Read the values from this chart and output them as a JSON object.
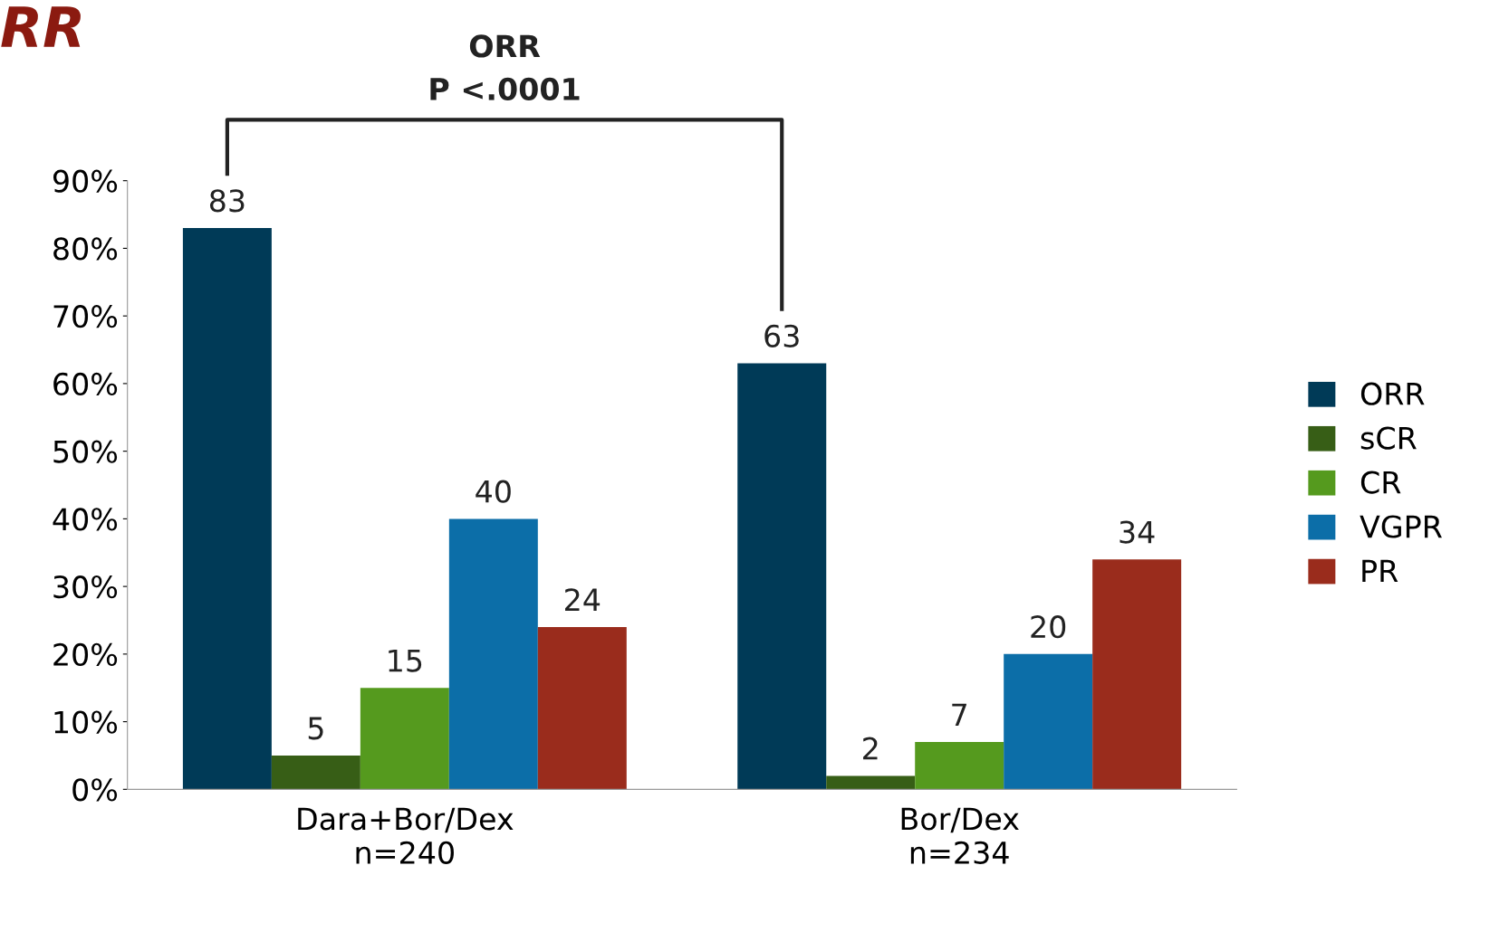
{
  "chart_data": {
    "type": "bar",
    "title": "RR",
    "categories": [
      "Dara+Bor/Dex\nn=240",
      "Bor/Dex\nn=234"
    ],
    "series": [
      {
        "name": "ORR",
        "color": "#003a57",
        "values": [
          83,
          63
        ]
      },
      {
        "name": "sCR",
        "color": "#375e16",
        "values": [
          5,
          2
        ]
      },
      {
        "name": "CR",
        "color": "#559a1e",
        "values": [
          15,
          7
        ]
      },
      {
        "name": "VGPR",
        "color": "#0c6ea8",
        "values": [
          40,
          20
        ]
      },
      {
        "name": "PR",
        "color": "#9a2c1c",
        "values": [
          24,
          34
        ]
      }
    ],
    "ylim": [
      0,
      90
    ],
    "yticks": [
      {
        "value": 0,
        "label": "0%"
      },
      {
        "value": 10,
        "label": "10%"
      },
      {
        "value": 20,
        "label": "20%"
      },
      {
        "value": 30,
        "label": "30%"
      },
      {
        "value": 40,
        "label": "40%"
      },
      {
        "value": 50,
        "label": "50%"
      },
      {
        "value": 60,
        "label": "60%"
      },
      {
        "value": 70,
        "label": "70%"
      },
      {
        "value": 80,
        "label": "80%"
      },
      {
        "value": 90,
        "label": "90%"
      }
    ],
    "data_labels": true,
    "legend": "right",
    "grid": false,
    "annotations": [
      "ORR\nP <.0001"
    ]
  }
}
